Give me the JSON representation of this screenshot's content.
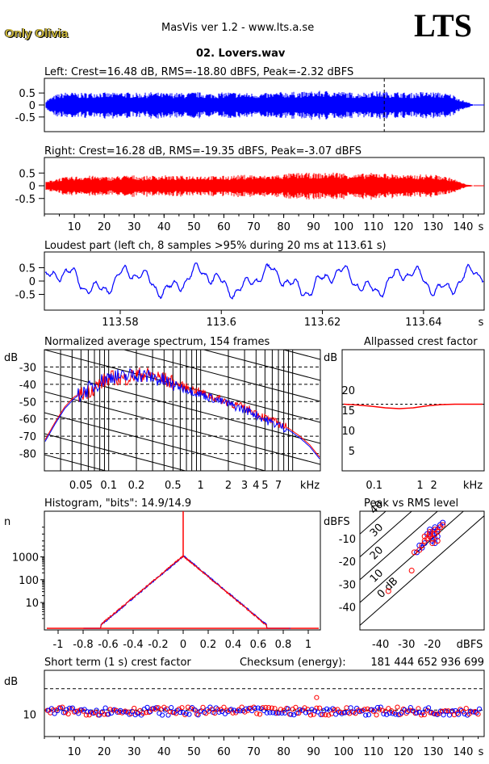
{
  "header": {
    "brand": "Only Olivia",
    "app_title": "MasVis ver 1.2 - www.lts.a.se",
    "logo": "LTS",
    "file_name": "02. Lovers.wav"
  },
  "colors": {
    "left": "#0000ff",
    "right": "#ff0000",
    "grid": "#000000"
  },
  "chart_data": [
    {
      "id": "left-waveform",
      "type": "area",
      "title": "Left: Crest=16.48 dB, RMS=-18.80 dBFS, Peak=-2.32 dBFS",
      "ylim": [
        -1,
        1
      ],
      "y_ticks": [
        "0.5",
        "0",
        "-0.5"
      ],
      "marker_time_s": 113.61,
      "envelope": [
        0.2,
        0.45,
        0.55,
        0.5,
        0.52,
        0.55,
        0.5,
        0.55,
        0.52,
        0.5,
        0.55,
        0.5,
        0.52,
        0.5,
        0.55,
        0.5,
        0.5,
        0.55,
        0.52,
        0.5,
        0.5,
        0.5,
        0.55,
        0.55,
        0.55,
        0.58,
        0.6,
        0.58,
        0.55,
        0.5,
        0.55,
        0.58,
        0.55,
        0.55,
        0.5,
        0.55,
        0.55,
        0.52,
        0.45,
        0.2,
        0.02
      ]
    },
    {
      "id": "right-waveform",
      "type": "area",
      "title": "Right: Crest=16.28 dB, RMS=-19.35 dBFS, Peak=-3.07 dBFS",
      "ylim": [
        -1,
        1
      ],
      "y_ticks": [
        "0.5",
        "0",
        "-0.5"
      ],
      "x_ticks": [
        "10",
        "20",
        "30",
        "40",
        "50",
        "60",
        "70",
        "80",
        "90",
        "100",
        "110",
        "120",
        "130",
        "140"
      ],
      "x_unit": "s",
      "envelope": [
        0.15,
        0.3,
        0.35,
        0.38,
        0.4,
        0.38,
        0.35,
        0.4,
        0.42,
        0.38,
        0.4,
        0.42,
        0.38,
        0.4,
        0.42,
        0.4,
        0.38,
        0.4,
        0.42,
        0.45,
        0.4,
        0.42,
        0.45,
        0.5,
        0.52,
        0.5,
        0.5,
        0.55,
        0.5,
        0.45,
        0.5,
        0.52,
        0.48,
        0.45,
        0.42,
        0.45,
        0.45,
        0.4,
        0.3,
        0.1,
        0.0
      ]
    },
    {
      "id": "loudest-part",
      "type": "line",
      "title": "Loudest part (left  ch, 8 samples >95% during 20 ms at 113.61 s)",
      "ylim": [
        -1,
        1
      ],
      "y_ticks": [
        "0.5",
        "0",
        "-0.5"
      ],
      "x_ticks": [
        "113.58",
        "113.6",
        "113.62",
        "113.64"
      ],
      "x_unit": "s"
    },
    {
      "id": "avg-spectrum",
      "type": "line",
      "title": "Normalized average spectrum, 154 frames",
      "ylabel": "dB",
      "y_ticks": [
        "-30",
        "-40",
        "-50",
        "-60",
        "-70",
        "-80"
      ],
      "x_ticks": [
        "0.05",
        "0.1",
        "0.2",
        "0.5",
        "1",
        "2",
        "3",
        "4",
        "5",
        "7"
      ],
      "x_unit": "kHz",
      "series": [
        {
          "name": "",
          "values": [
            -72,
            -62,
            -53,
            -47,
            -45,
            -42,
            -38,
            -36,
            -37,
            -35,
            -34,
            -35,
            -37,
            -39,
            -41,
            -43,
            -45,
            -47,
            -49,
            -51,
            -53,
            -55,
            -58,
            -61,
            -63,
            -66,
            -70,
            -75,
            -82
          ]
        },
        {
          "name": "",
          "values": [
            -73,
            -63,
            -54,
            -48,
            -44,
            -41,
            -37,
            -35,
            -36,
            -34,
            -35,
            -36,
            -38,
            -40,
            -42,
            -44,
            -46,
            -48,
            -50,
            -52,
            -54,
            -56,
            -59,
            -62,
            -64,
            -67,
            -71,
            -76,
            -83
          ]
        }
      ]
    },
    {
      "id": "allpassed-crest",
      "type": "line",
      "title": "Allpassed crest factor",
      "ylabel": "dB",
      "y_ticks": [
        "20",
        "15",
        "10",
        "5"
      ],
      "x_ticks": [
        "0.1",
        "1",
        "2"
      ],
      "x_unit": "kHz",
      "reference_db": 16.5,
      "series": [
        {
          "name": "",
          "values": [
            16.5,
            16.3,
            16.0,
            15.6,
            15.4,
            15.6,
            16.1,
            16.4,
            16.5,
            16.5,
            16.5
          ]
        }
      ]
    },
    {
      "id": "histogram",
      "type": "line",
      "title": "Histogram, \"bits\": 14.9/14.9",
      "ylabel": "n",
      "y_ticks": [
        "1000",
        "100",
        "10"
      ],
      "x_ticks": [
        "-1",
        "-0.8",
        "-0.6",
        "-0.4",
        "-0.2",
        "0",
        "0.2",
        "0.4",
        "0.6",
        "0.8",
        "1"
      ]
    },
    {
      "id": "peak-vs-rms",
      "type": "scatter",
      "title": "Peak vs RMS level",
      "ylabel": "dBFS",
      "y_ticks": [
        "-10",
        "-20",
        "-30",
        "-40"
      ],
      "x_ticks": [
        "-40",
        "-30",
        "-20"
      ],
      "x_unit": "dBFS",
      "diag_labels": [
        "40",
        "30",
        "20",
        "10",
        "0 dB"
      ],
      "points_left": [
        [
          -19,
          -5
        ],
        [
          -20,
          -7
        ],
        [
          -18,
          -6
        ],
        [
          -21,
          -9
        ],
        [
          -19,
          -10
        ],
        [
          -22,
          -8
        ],
        [
          -20,
          -11
        ],
        [
          -17,
          -4
        ],
        [
          -23,
          -12
        ],
        [
          -24,
          -14
        ],
        [
          -18,
          -9
        ],
        [
          -21,
          -6
        ],
        [
          -26,
          -16
        ],
        [
          -20,
          -8
        ],
        [
          -19,
          -12
        ],
        [
          -22,
          -10
        ],
        [
          -16,
          -3
        ],
        [
          -25,
          -13
        ]
      ],
      "points_right": [
        [
          -19,
          -6
        ],
        [
          -21,
          -8
        ],
        [
          -18,
          -7
        ],
        [
          -22,
          -10
        ],
        [
          -20,
          -12
        ],
        [
          -23,
          -9
        ],
        [
          -20,
          -10
        ],
        [
          -17,
          -5
        ],
        [
          -24,
          -13
        ],
        [
          -25,
          -15
        ],
        [
          -19,
          -8
        ],
        [
          -21,
          -7
        ],
        [
          -27,
          -16
        ],
        [
          -21,
          -9
        ],
        [
          -18,
          -11
        ],
        [
          -23,
          -11
        ],
        [
          -16,
          -4
        ],
        [
          -28,
          -24
        ],
        [
          -37,
          -33
        ]
      ]
    },
    {
      "id": "short-term-crest",
      "type": "scatter",
      "title": "Short term (1 s) crest factor",
      "ylabel": "dB",
      "y_ticks": [
        "10"
      ],
      "x_ticks": [
        "10",
        "20",
        "30",
        "40",
        "50",
        "60",
        "70",
        "80",
        "90",
        "100",
        "110",
        "120",
        "130",
        "140"
      ],
      "x_unit": "s"
    }
  ],
  "checksum": {
    "label": "Checksum (energy):",
    "value": "181 444 652 936 699"
  }
}
